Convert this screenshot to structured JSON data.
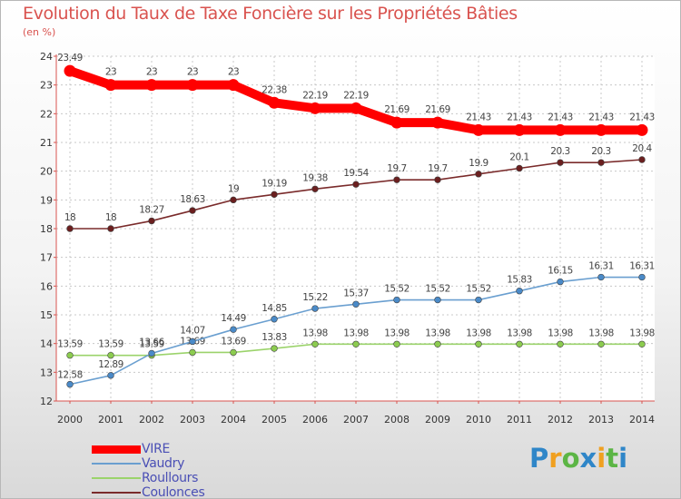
{
  "chart_data": {
    "type": "line",
    "title": "Evolution du Taux de Taxe Foncière sur les Propriétés Bâties",
    "subtitle": "(en %)",
    "x": [
      "2000",
      "2001",
      "2002",
      "2003",
      "2004",
      "2005",
      "2006",
      "2007",
      "2008",
      "2009",
      "2010",
      "2011",
      "2012",
      "2013",
      "2014"
    ],
    "ylim": [
      12,
      24
    ],
    "yticks": [
      12,
      13,
      14,
      15,
      16,
      17,
      18,
      19,
      20,
      21,
      22,
      23,
      24
    ],
    "grid": true,
    "legend_position": "bottom-left",
    "series": [
      {
        "name": "VIRE",
        "color": "#ff0000",
        "emphasis": "thick",
        "values": [
          23.49,
          23,
          23,
          23,
          23,
          22.38,
          22.19,
          22.19,
          21.69,
          21.69,
          21.43,
          21.43,
          21.43,
          21.43,
          21.43
        ],
        "labels": [
          "23.49",
          "23",
          "23",
          "23",
          "23",
          "22.38",
          "22.19",
          "22.19",
          "21.69",
          "21.69",
          "21.43",
          "21.43",
          "21.43",
          "21.43",
          "21.43"
        ]
      },
      {
        "name": "Vaudry",
        "color": "#6a9fd0",
        "point_color": "#4a8ac8",
        "values": [
          12.58,
          12.89,
          13.66,
          14.07,
          14.49,
          14.85,
          15.22,
          15.37,
          15.52,
          15.52,
          15.52,
          15.83,
          16.15,
          16.31,
          16.31
        ],
        "labels": [
          "12.58",
          "12.89",
          "13.66",
          "14.07",
          "14.49",
          "14.85",
          "15.22",
          "15.37",
          "15.52",
          "15.52",
          "15.52",
          "15.83",
          "16.15",
          "16.31",
          "16.31"
        ]
      },
      {
        "name": "Roullours",
        "color": "#9bd36b",
        "point_color": "#8ccc4f",
        "values": [
          13.59,
          13.59,
          13.59,
          13.69,
          13.69,
          13.83,
          13.98,
          13.98,
          13.98,
          13.98,
          13.98,
          13.98,
          13.98,
          13.98,
          13.98
        ],
        "labels": [
          "13.59",
          "13.59",
          "13.59",
          "13.69",
          "13.69",
          "13.83",
          "13.98",
          "13.98",
          "13.98",
          "13.98",
          "13.98",
          "13.98",
          "13.98",
          "13.98",
          "13.98"
        ]
      },
      {
        "name": "Coulonces",
        "color": "#7a2b2b",
        "point_color": "#6b1f1f",
        "values": [
          18,
          18,
          18.27,
          18.63,
          19,
          19.19,
          19.38,
          19.54,
          19.7,
          19.7,
          19.9,
          20.1,
          20.3,
          20.3,
          20.4
        ],
        "labels": [
          "18",
          "18",
          "18.27",
          "18.63",
          "19",
          "19.19",
          "19.38",
          "19.54",
          "19.7",
          "19.7",
          "19.9",
          "20.1",
          "20.3",
          "20.3",
          "20.4"
        ]
      }
    ]
  },
  "logo": {
    "text": "Proxiti",
    "letters": [
      "P",
      "r",
      "o",
      "x",
      "i",
      "t",
      "i"
    ],
    "colors": [
      "#2f86c8",
      "#f0a020",
      "#5cb545",
      "#2f86c8",
      "#f0a020",
      "#5cb545",
      "#2f86c8"
    ]
  }
}
